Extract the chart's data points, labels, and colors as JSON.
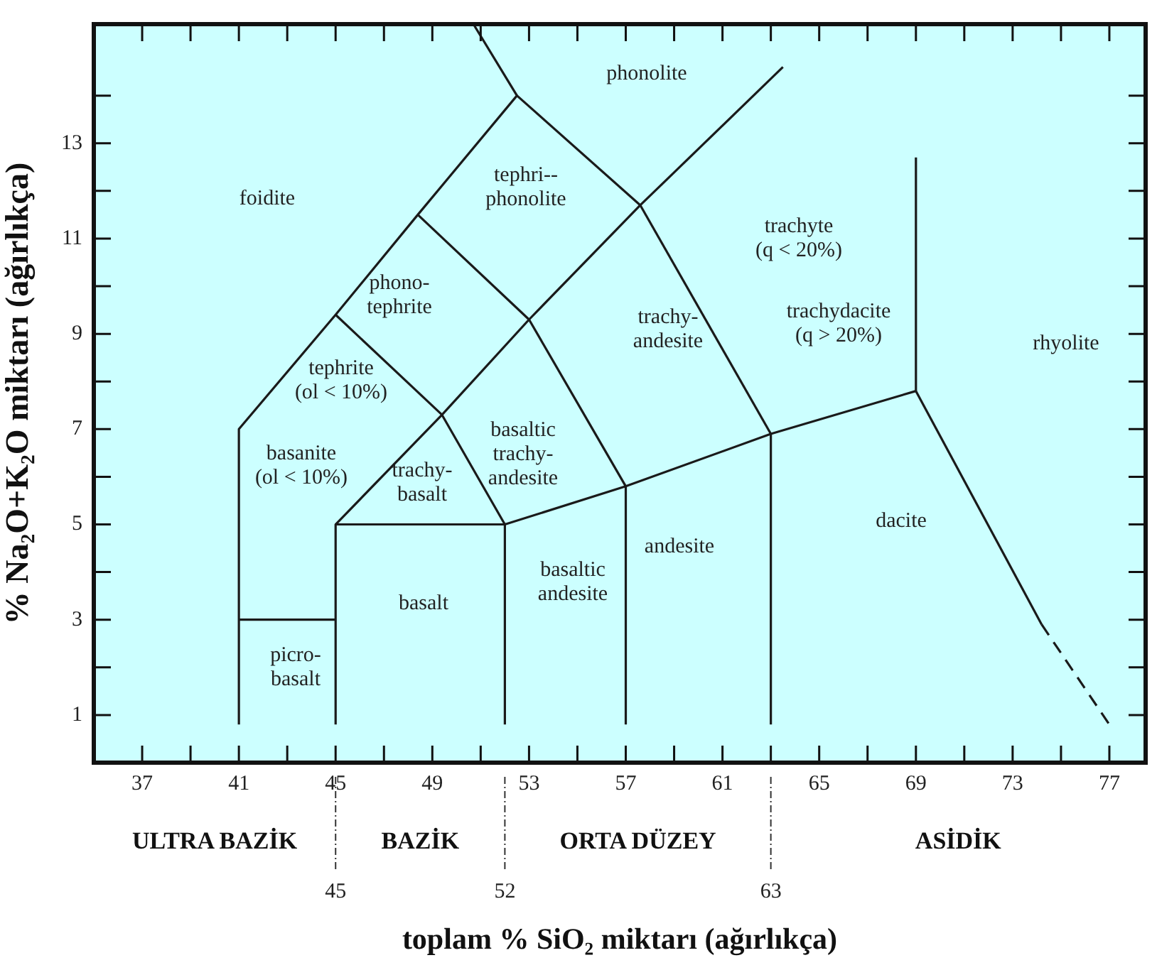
{
  "chart_data": {
    "type": "line",
    "xlabel": "toplam % SiO₂ miktarı (ağırlıkça)",
    "ylabel": "% Na₂O+K₂O miktarı (ağırlıkça)",
    "xlim": [
      35,
      78.5
    ],
    "ylim": [
      0,
      15.5
    ],
    "xticks": [
      37,
      {
        "value": 39,
        "label": null
      },
      41,
      {
        "value": 43,
        "label": null
      },
      45,
      {
        "value": 47,
        "label": null
      },
      49,
      {
        "value": 51,
        "label": null
      },
      53,
      {
        "value": 55,
        "label": null
      },
      57,
      {
        "value": 59,
        "label": null
      },
      61,
      {
        "value": 63,
        "label": null
      },
      65,
      {
        "value": 67,
        "label": null
      },
      69,
      {
        "value": 71,
        "label": null
      },
      73,
      {
        "value": 75,
        "label": null
      },
      77
    ],
    "yticks": [
      1,
      {
        "value": 2,
        "label": null
      },
      3,
      {
        "value": 4,
        "label": null
      },
      5,
      {
        "value": 6,
        "label": null
      },
      7,
      {
        "value": 8,
        "label": null
      },
      9,
      {
        "value": 10,
        "label": null
      },
      11,
      {
        "value": 12,
        "label": null
      },
      13,
      {
        "value": 14,
        "label": null
      }
    ],
    "x2lim": [
      35,
      78.5
    ],
    "x2ticks": [
      45,
      52,
      63
    ],
    "marker": "none",
    "line_style": "solid",
    "series": [
      {
        "color": "#1a1a1a",
        "x": [
          41,
          41,
          45,
          48.4,
          52.5,
          50.7
        ],
        "values": [
          0.8,
          7,
          9.4,
          11.5,
          14,
          15.5
        ]
      },
      {
        "color": "#1a1a1a",
        "x": [
          52.5,
          57.6,
          63.5
        ],
        "values": [
          14,
          11.7,
          14.6
        ]
      },
      {
        "color": "#1a1a1a",
        "x": [
          45,
          49.4,
          53,
          57.6
        ],
        "values": [
          9.4,
          7.3,
          9.3,
          11.7
        ]
      },
      {
        "color": "#1a1a1a",
        "x": [
          48.4,
          53,
          57
        ],
        "values": [
          11.5,
          9.3,
          5.8
        ]
      },
      {
        "color": "#1a1a1a",
        "x": [
          41,
          45
        ],
        "values": [
          3,
          3
        ]
      },
      {
        "color": "#1a1a1a",
        "x": [
          45,
          45,
          52,
          57,
          63,
          69
        ],
        "values": [
          0.8,
          5,
          5,
          5.8,
          6.9,
          7.8
        ]
      },
      {
        "color": "#1a1a1a",
        "x": [
          45,
          49.4,
          52
        ],
        "values": [
          5,
          7.3,
          5
        ]
      },
      {
        "color": "#1a1a1a",
        "x": [
          52,
          52
        ],
        "values": [
          0.8,
          5
        ]
      },
      {
        "color": "#1a1a1a",
        "x": [
          57,
          57
        ],
        "values": [
          0.8,
          5.8
        ]
      },
      {
        "color": "#1a1a1a",
        "x": [
          63,
          63
        ],
        "values": [
          0.8,
          6.9
        ]
      },
      {
        "color": "#1a1a1a",
        "x": [
          57.6,
          63
        ],
        "values": [
          11.7,
          6.9
        ]
      },
      {
        "color": "#1a1a1a",
        "x": [
          69,
          69
        ],
        "values": [
          7.8,
          12.7
        ]
      },
      {
        "color": "#1a1a1a",
        "x": [
          69,
          74.2
        ],
        "values": [
          7.8,
          2.9
        ]
      },
      {
        "color": "#1a1a1a",
        "line_style": "dashed",
        "x": [
          74.2,
          77
        ],
        "values": [
          2.9,
          0.8
        ]
      }
    ],
    "annotations": [
      "phonolite",
      "foidite",
      "tephri--\nphonolite",
      "trachyte\n(q < 20%)",
      "phono-\ntephrite",
      "trachy-\nandesite",
      "trachydacite\n(q > 20%)",
      "rhyolite",
      "tephrite\n(ol < 10%)",
      "basaltic\ntrachy-\nandesite",
      "basanite\n(ol < 10%)",
      "trachy-\nbasalt",
      "andesite",
      "dacite",
      "basaltic\nandesite",
      "basalt",
      "picro-\nbasalt",
      "ULTRA BAZİK",
      "BAZİK",
      "ORTA DÜZEY",
      "ASİDİK"
    ]
  }
}
